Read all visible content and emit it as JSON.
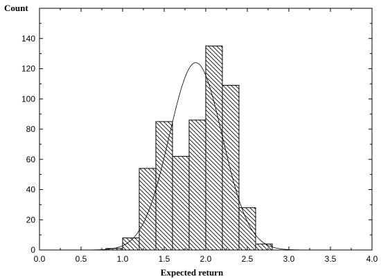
{
  "chart_data": {
    "type": "bar",
    "xlabel": "Expected return",
    "ylabel": "Count",
    "xlim": [
      0.0,
      4.0
    ],
    "ylim": [
      0,
      160
    ],
    "x_ticks": [
      "0.0",
      "0.5",
      "1.0",
      "1.5",
      "2.0",
      "2.5",
      "3.0",
      "3.5",
      "4.0"
    ],
    "y_ticks": [
      "0",
      "20",
      "40",
      "60",
      "80",
      "100",
      "120",
      "140"
    ],
    "bin_width": 0.2,
    "bins": [
      {
        "start": 0.8,
        "count": 1
      },
      {
        "start": 1.0,
        "count": 8
      },
      {
        "start": 1.2,
        "count": 54
      },
      {
        "start": 1.4,
        "count": 85
      },
      {
        "start": 1.6,
        "count": 62
      },
      {
        "start": 1.8,
        "count": 86
      },
      {
        "start": 2.0,
        "count": 135
      },
      {
        "start": 2.2,
        "count": 109
      },
      {
        "start": 2.4,
        "count": 28
      },
      {
        "start": 2.6,
        "count": 4
      }
    ],
    "fit_curve": {
      "type": "normal",
      "mean": 1.88,
      "sd": 0.32,
      "peak": 124
    },
    "grid": false,
    "legend": "none"
  }
}
